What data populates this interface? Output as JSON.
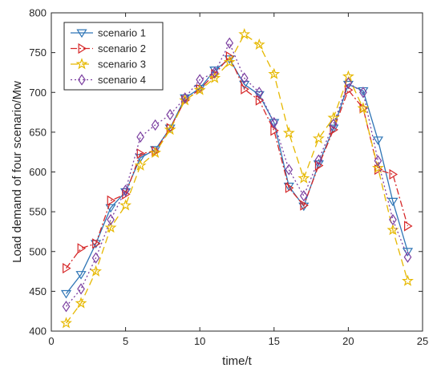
{
  "chart_data": {
    "type": "line",
    "xlabel": "time/t",
    "ylabel": "Load demand of four scenario/Mw",
    "xlim": [
      0,
      25
    ],
    "ylim": [
      400,
      800
    ],
    "xticks": [
      0,
      5,
      10,
      15,
      20,
      25
    ],
    "yticks": [
      400,
      450,
      500,
      550,
      600,
      650,
      700,
      750,
      800
    ],
    "legend_position": "top-left",
    "grid": false,
    "x": [
      1,
      2,
      3,
      4,
      5,
      6,
      7,
      8,
      9,
      10,
      11,
      12,
      13,
      14,
      15,
      16,
      17,
      18,
      19,
      20,
      21,
      22,
      23,
      24
    ],
    "series": [
      {
        "name": "scenario 1",
        "color": "#2e75b6",
        "line_style": "solid",
        "marker": "triangle-down",
        "values": [
          447,
          471,
          510,
          555,
          575,
          618,
          628,
          655,
          693,
          705,
          728,
          742,
          710,
          697,
          662,
          582,
          557,
          610,
          655,
          710,
          702,
          640,
          563,
          500
        ]
      },
      {
        "name": "scenario 2",
        "color": "#d62728",
        "line_style": "dashdot",
        "marker": "triangle-right",
        "values": [
          479,
          504,
          510,
          564,
          572,
          623,
          626,
          655,
          690,
          704,
          723,
          745,
          704,
          690,
          652,
          580,
          558,
          608,
          653,
          703,
          680,
          603,
          597,
          532
        ]
      },
      {
        "name": "scenario 3",
        "color": "#e6b800",
        "line_style": "dashed",
        "marker": "star",
        "values": [
          410,
          435,
          475,
          530,
          558,
          608,
          624,
          653,
          690,
          703,
          718,
          738,
          773,
          760,
          723,
          649,
          592,
          642,
          668,
          720,
          680,
          605,
          527,
          463
        ]
      },
      {
        "name": "scenario 4",
        "color": "#7b3fa0",
        "line_style": "dotted",
        "marker": "diamond",
        "values": [
          431,
          453,
          492,
          540,
          577,
          644,
          659,
          672,
          693,
          716,
          725,
          762,
          718,
          700,
          662,
          603,
          570,
          615,
          660,
          712,
          700,
          614,
          540,
          493
        ]
      }
    ]
  }
}
